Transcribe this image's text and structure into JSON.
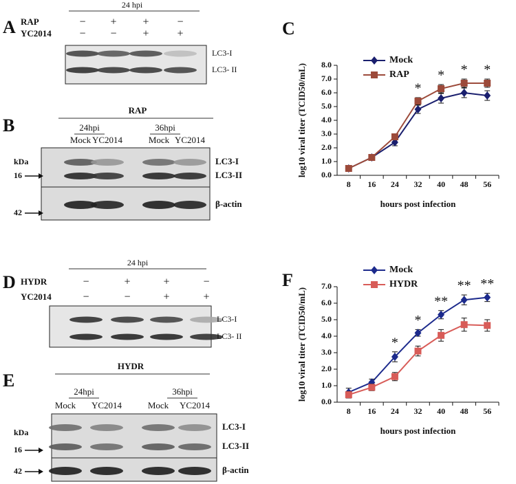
{
  "panels": [
    {
      "letter": "A",
      "header": "24 hpi",
      "rows": [
        {
          "label": "RAP",
          "signs": [
            "−",
            "+",
            "+",
            "−"
          ]
        },
        {
          "label": "YC2014",
          "signs": [
            "−",
            "−",
            "+",
            "+"
          ]
        }
      ],
      "bands": [
        "LC3-I",
        "LC3- II"
      ]
    },
    {
      "letter": "B",
      "header": "RAP",
      "times": [
        "24hpi",
        "36hpi"
      ],
      "lanes": [
        "Mock",
        "YC2014",
        "Mock",
        "YC2014"
      ],
      "markers": [
        "kDa",
        "16",
        "42"
      ],
      "bands": [
        "LC3-I",
        "LC3-II",
        "β-actin"
      ]
    },
    {
      "letter": "D",
      "header": "24 hpi",
      "rows": [
        {
          "label": "HYDR",
          "signs": [
            "−",
            "+",
            "+",
            "−"
          ]
        },
        {
          "label": "YC2014",
          "signs": [
            "−",
            "−",
            "+",
            "+"
          ]
        }
      ],
      "bands": [
        "LC3-I",
        "LC3- II"
      ]
    },
    {
      "letter": "E",
      "header": "HYDR",
      "times": [
        "24hpi",
        "36hpi"
      ],
      "lanes": [
        "Mock",
        "YC2014",
        "Mock",
        "YC2014"
      ],
      "markers": [
        "kDa",
        "16",
        "42"
      ],
      "bands": [
        "LC3-I",
        "LC3-II",
        "β-actin"
      ]
    }
  ],
  "chart_data": [
    {
      "type": "line",
      "panel_label": "C",
      "xlabel": "hours post infection",
      "ylabel": "log10 viral titer (TCID50/mL)",
      "categories": [
        "8",
        "16",
        "24",
        "32",
        "40",
        "48",
        "56"
      ],
      "ylim": [
        0,
        8
      ],
      "yticks": [
        {
          "value": 0,
          "label": "0.0"
        },
        {
          "value": 1,
          "label": "1.0"
        },
        {
          "value": 2,
          "label": "2.0"
        },
        {
          "value": 3,
          "label": "3.0"
        },
        {
          "value": 4,
          "label": "4.0"
        },
        {
          "value": 5,
          "label": "5.0"
        },
        {
          "value": 6,
          "label": "6.0"
        },
        {
          "value": 7,
          "label": "7.0"
        },
        {
          "value": 8,
          "label": "8.0"
        }
      ],
      "series": [
        {
          "name": "Mock",
          "color": "#1a1f6e",
          "marker": "diamond",
          "values": [
            0.5,
            1.3,
            2.4,
            4.8,
            5.6,
            6.0,
            5.8
          ],
          "errors": [
            0.1,
            0.15,
            0.25,
            0.3,
            0.35,
            0.35,
            0.35
          ]
        },
        {
          "name": "RAP",
          "color": "#9c4a3a",
          "marker": "square",
          "values": [
            0.5,
            1.3,
            2.8,
            5.4,
            6.3,
            6.7,
            6.7
          ],
          "errors": [
            0.1,
            0.15,
            0.2,
            0.25,
            0.3,
            0.3,
            0.3
          ]
        }
      ],
      "significance": [
        null,
        null,
        null,
        "*",
        "*",
        "*",
        "*"
      ]
    },
    {
      "type": "line",
      "panel_label": "F",
      "xlabel": "hours post infection",
      "ylabel": "log10 viral titer (TCID50/mL)",
      "categories": [
        "8",
        "16",
        "24",
        "32",
        "40",
        "48",
        "56"
      ],
      "ylim": [
        0,
        7
      ],
      "yticks": [
        {
          "value": 0,
          "label": "0.0"
        },
        {
          "value": 1,
          "label": "1.0"
        },
        {
          "value": 2,
          "label": "2.0"
        },
        {
          "value": 3,
          "label": "3.0"
        },
        {
          "value": 4,
          "label": "4.0"
        },
        {
          "value": 5,
          "label": "5.0"
        },
        {
          "value": 6,
          "label": "6.0"
        },
        {
          "value": 7,
          "label": "7.0"
        }
      ],
      "series": [
        {
          "name": "Mock",
          "color": "#1c2a8c",
          "marker": "diamond",
          "values": [
            0.6,
            1.2,
            2.75,
            4.2,
            5.3,
            6.2,
            6.35
          ],
          "errors": [
            0.25,
            0.2,
            0.3,
            0.2,
            0.25,
            0.3,
            0.25
          ]
        },
        {
          "name": "HYDR",
          "color": "#d85c58",
          "marker": "square",
          "values": [
            0.45,
            0.9,
            1.55,
            3.1,
            4.05,
            4.7,
            4.65
          ],
          "errors": [
            0.2,
            0.2,
            0.25,
            0.3,
            0.35,
            0.4,
            0.35
          ]
        }
      ],
      "significance": [
        null,
        null,
        "*",
        "*",
        "**",
        "**",
        "**"
      ]
    }
  ]
}
